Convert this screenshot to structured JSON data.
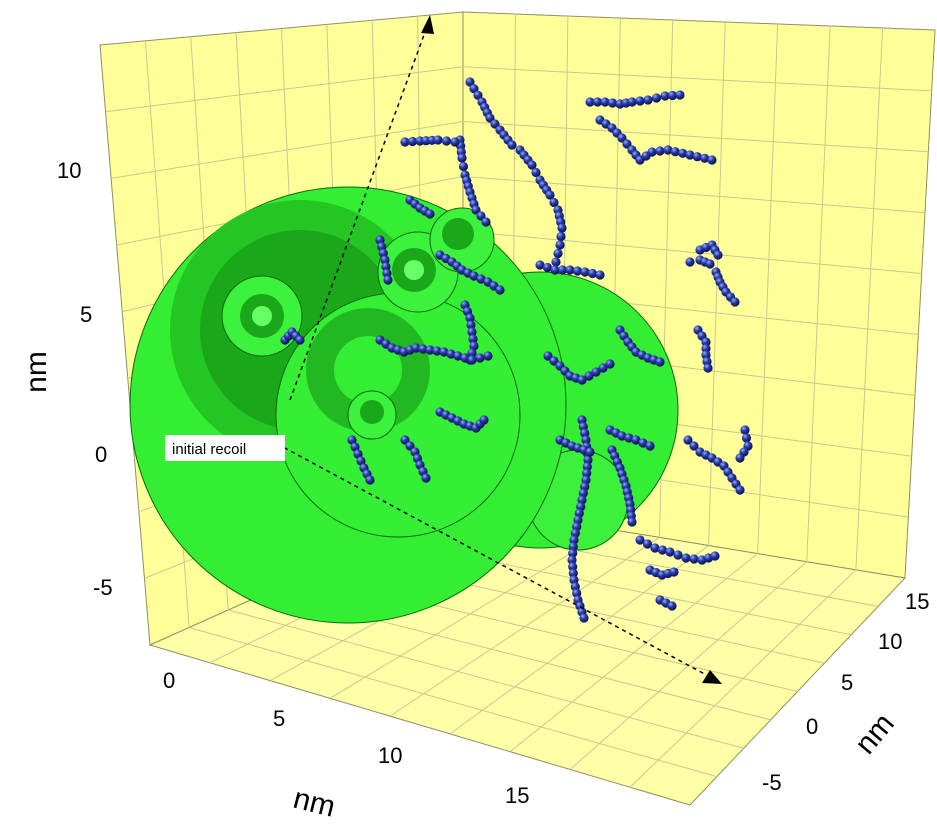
{
  "chart_data": {
    "type": "scatter",
    "subtype": "3d-scatter-with-spheres",
    "title": "",
    "axes": {
      "vertical": {
        "label": "nm",
        "ticks": [
          "10",
          "5",
          "0",
          "-5"
        ]
      },
      "front": {
        "label": "nm",
        "ticks": [
          "0",
          "5",
          "10",
          "15"
        ]
      },
      "depth": {
        "label": "nm",
        "ticks": [
          "15",
          "10",
          "5",
          "0",
          "-5"
        ]
      }
    },
    "annotation": "initial recoil",
    "grid": true,
    "colors": {
      "wall": "#ffff99",
      "grid": "#c8c890",
      "sphere": "#33ee33",
      "sphere_dark": "#18a818",
      "sphere_edge": "#0a6a0a",
      "atom": "#1a237e",
      "atom_highlight": "#7fa0ff"
    },
    "clusters": [
      {
        "kind": "track",
        "points": [
          [
            470,
            82
          ],
          [
            482,
            102
          ],
          [
            490,
            118
          ],
          [
            500,
            130
          ],
          [
            512,
            145
          ]
        ]
      },
      {
        "kind": "track",
        "points": [
          [
            460,
            140
          ],
          [
            462,
            158
          ],
          [
            465,
            175
          ],
          [
            470,
            192
          ],
          [
            476,
            210
          ],
          [
            486,
            222
          ]
        ]
      },
      {
        "kind": "track",
        "points": [
          [
            405,
            142
          ],
          [
            420,
            141
          ],
          [
            438,
            140
          ],
          [
            455,
            142
          ]
        ]
      },
      {
        "kind": "track",
        "points": [
          [
            590,
            102
          ],
          [
            605,
            102
          ],
          [
            620,
            104
          ],
          [
            632,
            102
          ],
          [
            648,
            100
          ],
          [
            665,
            96
          ],
          [
            680,
            95
          ]
        ]
      },
      {
        "kind": "track",
        "points": [
          [
            600,
            120
          ],
          [
            612,
            128
          ],
          [
            622,
            138
          ],
          [
            632,
            150
          ],
          [
            640,
            160
          ],
          [
            652,
            152
          ],
          [
            668,
            150
          ],
          [
            690,
            155
          ],
          [
            712,
            160
          ]
        ]
      },
      {
        "kind": "track",
        "points": [
          [
            520,
            150
          ],
          [
            532,
            165
          ],
          [
            540,
            180
          ],
          [
            550,
            195
          ],
          [
            558,
            210
          ],
          [
            562,
            228
          ],
          [
            560,
            245
          ],
          [
            556,
            262
          ]
        ]
      },
      {
        "kind": "track",
        "points": [
          [
            540,
            265
          ],
          [
            555,
            270
          ],
          [
            570,
            270
          ],
          [
            585,
            272
          ],
          [
            600,
            275
          ]
        ]
      },
      {
        "kind": "track",
        "points": [
          [
            690,
            262
          ],
          [
            700,
            260
          ],
          [
            710,
            264
          ],
          [
            716,
            272
          ],
          [
            720,
            282
          ],
          [
            726,
            292
          ],
          [
            735,
            302
          ]
        ]
      },
      {
        "kind": "track",
        "points": [
          [
            700,
            250
          ],
          [
            712,
            245
          ],
          [
            718,
            255
          ]
        ]
      },
      {
        "kind": "track",
        "points": [
          [
            380,
            240
          ],
          [
            385,
            260
          ],
          [
            388,
            280
          ]
        ]
      },
      {
        "kind": "track",
        "points": [
          [
            440,
            255
          ],
          [
            452,
            262
          ],
          [
            462,
            270
          ],
          [
            474,
            276
          ],
          [
            488,
            282
          ],
          [
            500,
            290
          ]
        ]
      },
      {
        "kind": "track",
        "points": [
          [
            465,
            305
          ],
          [
            470,
            318
          ],
          [
            472,
            332
          ],
          [
            474,
            346
          ],
          [
            470,
            360
          ]
        ]
      },
      {
        "kind": "track",
        "points": [
          [
            380,
            340
          ],
          [
            392,
            348
          ],
          [
            404,
            352
          ],
          [
            416,
            348
          ],
          [
            430,
            350
          ],
          [
            444,
            352
          ],
          [
            458,
            356
          ],
          [
            472,
            360
          ],
          [
            488,
            356
          ]
        ]
      },
      {
        "kind": "track",
        "points": [
          [
            620,
            330
          ],
          [
            628,
            342
          ],
          [
            636,
            352
          ],
          [
            648,
            358
          ],
          [
            660,
            362
          ]
        ]
      },
      {
        "kind": "track",
        "points": [
          [
            698,
            330
          ],
          [
            706,
            342
          ],
          [
            706,
            355
          ],
          [
            708,
            368
          ]
        ]
      },
      {
        "kind": "track",
        "points": [
          [
            548,
            356
          ],
          [
            560,
            366
          ],
          [
            570,
            376
          ],
          [
            582,
            380
          ],
          [
            596,
            372
          ],
          [
            610,
            364
          ]
        ]
      },
      {
        "kind": "track",
        "points": [
          [
            440,
            412
          ],
          [
            452,
            418
          ],
          [
            464,
            424
          ],
          [
            476,
            428
          ],
          [
            484,
            420
          ]
        ]
      },
      {
        "kind": "track",
        "points": [
          [
            405,
            440
          ],
          [
            415,
            452
          ],
          [
            420,
            465
          ],
          [
            426,
            478
          ]
        ]
      },
      {
        "kind": "track",
        "points": [
          [
            352,
            440
          ],
          [
            358,
            454
          ],
          [
            364,
            468
          ],
          [
            370,
            480
          ]
        ]
      },
      {
        "kind": "track",
        "points": [
          [
            582,
            420
          ],
          [
            586,
            440
          ],
          [
            588,
            460
          ],
          [
            586,
            480
          ],
          [
            582,
            500
          ],
          [
            578,
            520
          ],
          [
            574,
            540
          ],
          [
            572,
            560
          ],
          [
            574,
            580
          ],
          [
            578,
            600
          ],
          [
            584,
            618
          ]
        ]
      },
      {
        "kind": "track",
        "points": [
          [
            612,
            450
          ],
          [
            620,
            468
          ],
          [
            626,
            486
          ],
          [
            630,
            504
          ],
          [
            632,
            522
          ]
        ]
      },
      {
        "kind": "track",
        "points": [
          [
            640,
            540
          ],
          [
            655,
            548
          ],
          [
            670,
            552
          ],
          [
            686,
            558
          ],
          [
            702,
            560
          ],
          [
            715,
            556
          ]
        ]
      },
      {
        "kind": "track",
        "points": [
          [
            650,
            570
          ],
          [
            662,
            575
          ],
          [
            674,
            572
          ]
        ]
      },
      {
        "kind": "track",
        "points": [
          [
            688,
            440
          ],
          [
            700,
            452
          ],
          [
            712,
            458
          ],
          [
            724,
            466
          ],
          [
            732,
            478
          ],
          [
            740,
            490
          ]
        ]
      },
      {
        "kind": "track",
        "points": [
          [
            745,
            430
          ],
          [
            748,
            446
          ],
          [
            740,
            458
          ]
        ]
      },
      {
        "kind": "track",
        "points": [
          [
            610,
            430
          ],
          [
            622,
            436
          ],
          [
            636,
            440
          ],
          [
            650,
            446
          ]
        ]
      },
      {
        "kind": "track",
        "points": [
          [
            285,
            340
          ],
          [
            292,
            332
          ],
          [
            300,
            340
          ]
        ]
      },
      {
        "kind": "track",
        "points": [
          [
            560,
            440
          ],
          [
            572,
            446
          ],
          [
            590,
            452
          ]
        ]
      },
      {
        "kind": "track",
        "points": [
          [
            410,
            200
          ],
          [
            420,
            208
          ],
          [
            430,
            214
          ]
        ]
      },
      {
        "kind": "track",
        "points": [
          [
            660,
            600
          ],
          [
            672,
            606
          ]
        ]
      }
    ]
  }
}
